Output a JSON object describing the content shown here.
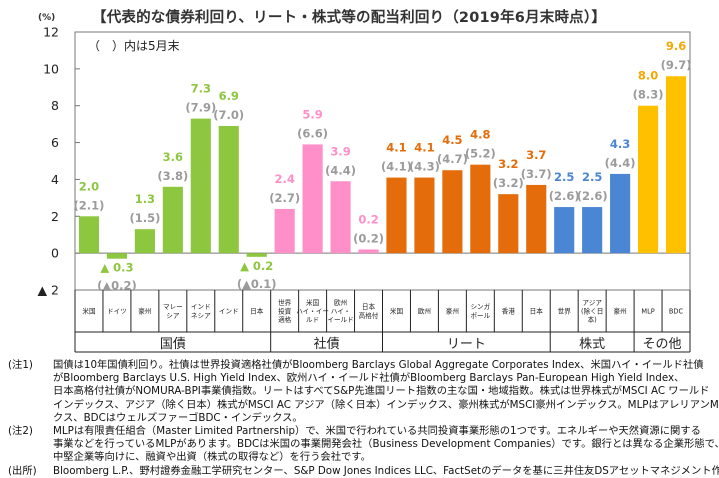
{
  "chart_data": {
    "type": "bar",
    "title": "【代表的な債券利回り、リート・株式等の配当利回り（2019年6月末時点）】",
    "ylabel": "(%)",
    "ylim": [
      -2,
      12
    ],
    "yticks": [
      12,
      10,
      8,
      6,
      4,
      2,
      0,
      -2
    ],
    "ytick_labels": [
      "12",
      "10",
      "8",
      "6",
      "4",
      "2",
      "0",
      "▲ 2"
    ],
    "legend_note": "（　）内は5月末",
    "categories": [
      "米国",
      "ドイツ",
      "豪州",
      "マレーシア",
      "インドネシア",
      "インド",
      "日本",
      "世界投資適格",
      "米国ハイ・イールド",
      "欧州ハイ・イールド",
      "日本高格付",
      "米国",
      "欧州",
      "豪州",
      "シンガポール",
      "香港",
      "日本",
      "世界",
      "アジア(除く日本)",
      "豪州",
      "MLP",
      "BDC"
    ],
    "category_display": [
      [
        "米国"
      ],
      [
        "ドイツ"
      ],
      [
        "豪州"
      ],
      [
        "マレー",
        "シア"
      ],
      [
        "インド",
        "ネシア"
      ],
      [
        "インド"
      ],
      [
        "日本"
      ],
      [
        "世界",
        "投資",
        "適格"
      ],
      [
        "米国",
        "ハイ・イー",
        "ルド"
      ],
      [
        "欧州",
        "ハイ・",
        "イールド"
      ],
      [
        "日本",
        "高格付"
      ],
      [
        "米国"
      ],
      [
        "欧州"
      ],
      [
        "豪州"
      ],
      [
        "シンガ",
        "ポール"
      ],
      [
        "香港"
      ],
      [
        "日本"
      ],
      [
        "世界"
      ],
      [
        "アジア",
        "(除く日",
        "本)"
      ],
      [
        "豪州"
      ],
      [
        "MLP"
      ],
      [
        "BDC"
      ]
    ],
    "groups": [
      {
        "name": "国債",
        "start": 0,
        "count": 7,
        "color": "#8dc63f",
        "label_color": "#8dc63f"
      },
      {
        "name": "社債",
        "start": 7,
        "count": 4,
        "color": "#ff8fc8",
        "label_color": "#ff8fc8"
      },
      {
        "name": "リート",
        "start": 11,
        "count": 6,
        "color": "#e46c0a",
        "label_color": "#e46c0a"
      },
      {
        "name": "株式",
        "start": 17,
        "count": 3,
        "color": "#4a86d4",
        "label_color": "#4a86d4"
      },
      {
        "name": "その他",
        "start": 20,
        "count": 2,
        "color": "#ffc000",
        "label_color": "#f5a800"
      }
    ],
    "series": [
      {
        "name": "2019年6月末",
        "values": [
          2.0,
          -0.3,
          1.3,
          3.6,
          7.3,
          6.9,
          -0.2,
          2.4,
          5.9,
          3.9,
          0.2,
          4.1,
          4.1,
          4.5,
          4.8,
          3.2,
          3.7,
          2.5,
          2.5,
          4.3,
          8.0,
          9.6
        ],
        "labels": [
          "2.0",
          "▲ 0.3",
          "1.3",
          "3.6",
          "7.3",
          "6.9",
          "▲ 0.2",
          "2.4",
          "5.9",
          "3.9",
          "0.2",
          "4.1",
          "4.1",
          "4.5",
          "4.8",
          "3.2",
          "3.7",
          "2.5",
          "2.5",
          "4.3",
          "8.0",
          "9.6"
        ]
      },
      {
        "name": "5月末",
        "values": [
          2.1,
          -0.2,
          1.5,
          3.8,
          7.9,
          7.0,
          -0.1,
          2.7,
          6.6,
          4.4,
          0.2,
          4.1,
          4.3,
          4.7,
          5.2,
          3.2,
          3.7,
          2.6,
          2.6,
          4.4,
          8.3,
          9.7
        ],
        "labels": [
          "(2.1)",
          "(▲0.2)",
          "(1.5)",
          "(3.8)",
          "(7.9)",
          "(7.0)",
          "(▲0.1)",
          "(2.7)",
          "(6.6)",
          "(4.4)",
          "(0.2)",
          "(4.1)",
          "(4.3)",
          "(4.7)",
          "(5.2)",
          "(3.2)",
          "(3.7)",
          "(2.6)",
          "(2.6)",
          "(4.4)",
          "(8.3)",
          "(9.7)"
        ]
      }
    ],
    "grid": false
  },
  "notes": [
    {
      "head": "(注1)",
      "lines": [
        "国債は10年国債利回り。社債は世界投資適格社債がBloomberg Barclays Global Aggregate Corporates Index、米国ハイ・イールド社債",
        "がBloomberg Barclays U.S. High Yield Index、欧州ハイ・イールド社債がBloomberg Barclays Pan-European High Yield Index、",
        "日本高格付社債がNOMURA-BPI事業債指数。リートはすべてS&P先進国リート指数の主な国・地域指数。株式は世界株式がMSCI AC ワールド",
        "インデックス、アジア（除く日本）株式がMSCI AC アジア（除く日本）インデックス、豪州株式がMSCI豪州インデックス。MLPはアレリアンMLP・インデッ",
        "クス、BDCはウェルズファーゴBDC・インデックス。"
      ]
    },
    {
      "head": "(注2)",
      "lines": [
        "MLPは有限責任組合（Master Limited Partnership）で、米国で行われている共同投資事業形態の1つです。エネルギーや天然資源に関する",
        "事業などを行っているMLPがあります。BDCは米国の事業開発会社（Business Development Companies）です。銀行とは異なる企業形態で、",
        "中堅企業等向けに、融資や出資（株式の取得など）を行う会社です。"
      ]
    },
    {
      "head": "(出所)",
      "lines": [
        "Bloomberg L.P.、野村證券金融工学研究センター、S&P Dow Jones Indices LLC、FactSetのデータを基に三井住友DSアセットマネジメント作成"
      ]
    }
  ]
}
